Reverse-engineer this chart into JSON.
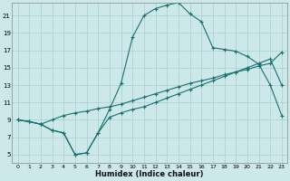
{
  "xlabel": "Humidex (Indice chaleur)",
  "bg_color": "#cce8e8",
  "line_color": "#1a7070",
  "grid_color": "#aacece",
  "xlim": [
    -0.5,
    23.5
  ],
  "ylim": [
    4.0,
    22.5
  ],
  "yticks": [
    5,
    7,
    9,
    11,
    13,
    15,
    17,
    19,
    21
  ],
  "xticks": [
    0,
    1,
    2,
    3,
    4,
    5,
    6,
    7,
    8,
    9,
    10,
    11,
    12,
    13,
    14,
    15,
    16,
    17,
    18,
    19,
    20,
    21,
    22,
    23
  ],
  "series1_x": [
    0,
    1,
    2,
    3,
    4,
    5,
    6,
    7,
    8,
    9,
    10,
    11,
    12,
    13,
    14,
    15,
    16,
    17,
    18,
    19,
    20,
    21,
    22,
    23
  ],
  "series1_y": [
    9.0,
    8.8,
    8.5,
    7.8,
    7.5,
    5.0,
    5.2,
    7.5,
    10.2,
    13.2,
    18.5,
    21.0,
    21.8,
    22.2,
    22.5,
    21.2,
    20.3,
    17.3,
    17.1,
    16.9,
    16.3,
    15.4,
    13.0,
    9.5
  ],
  "series2_x": [
    0,
    1,
    2,
    3,
    4,
    5,
    6,
    7,
    8,
    9,
    10,
    11,
    12,
    13,
    14,
    15,
    16,
    17,
    18,
    19,
    20,
    21,
    22,
    23
  ],
  "series2_y": [
    9.0,
    8.8,
    8.5,
    9.0,
    9.5,
    9.8,
    10.0,
    10.3,
    10.5,
    10.8,
    11.2,
    11.6,
    12.0,
    12.4,
    12.8,
    13.2,
    13.5,
    13.8,
    14.2,
    14.5,
    14.8,
    15.2,
    15.5,
    16.8
  ],
  "series3_x": [
    0,
    1,
    2,
    3,
    4,
    5,
    6,
    7,
    8,
    9,
    10,
    11,
    12,
    13,
    14,
    15,
    16,
    17,
    18,
    19,
    20,
    21,
    22,
    23
  ],
  "series3_y": [
    9.0,
    8.8,
    8.5,
    7.8,
    7.5,
    5.0,
    5.2,
    7.5,
    9.3,
    9.8,
    10.2,
    10.5,
    11.0,
    11.5,
    12.0,
    12.5,
    13.0,
    13.5,
    14.0,
    14.5,
    15.0,
    15.5,
    16.0,
    13.0
  ]
}
